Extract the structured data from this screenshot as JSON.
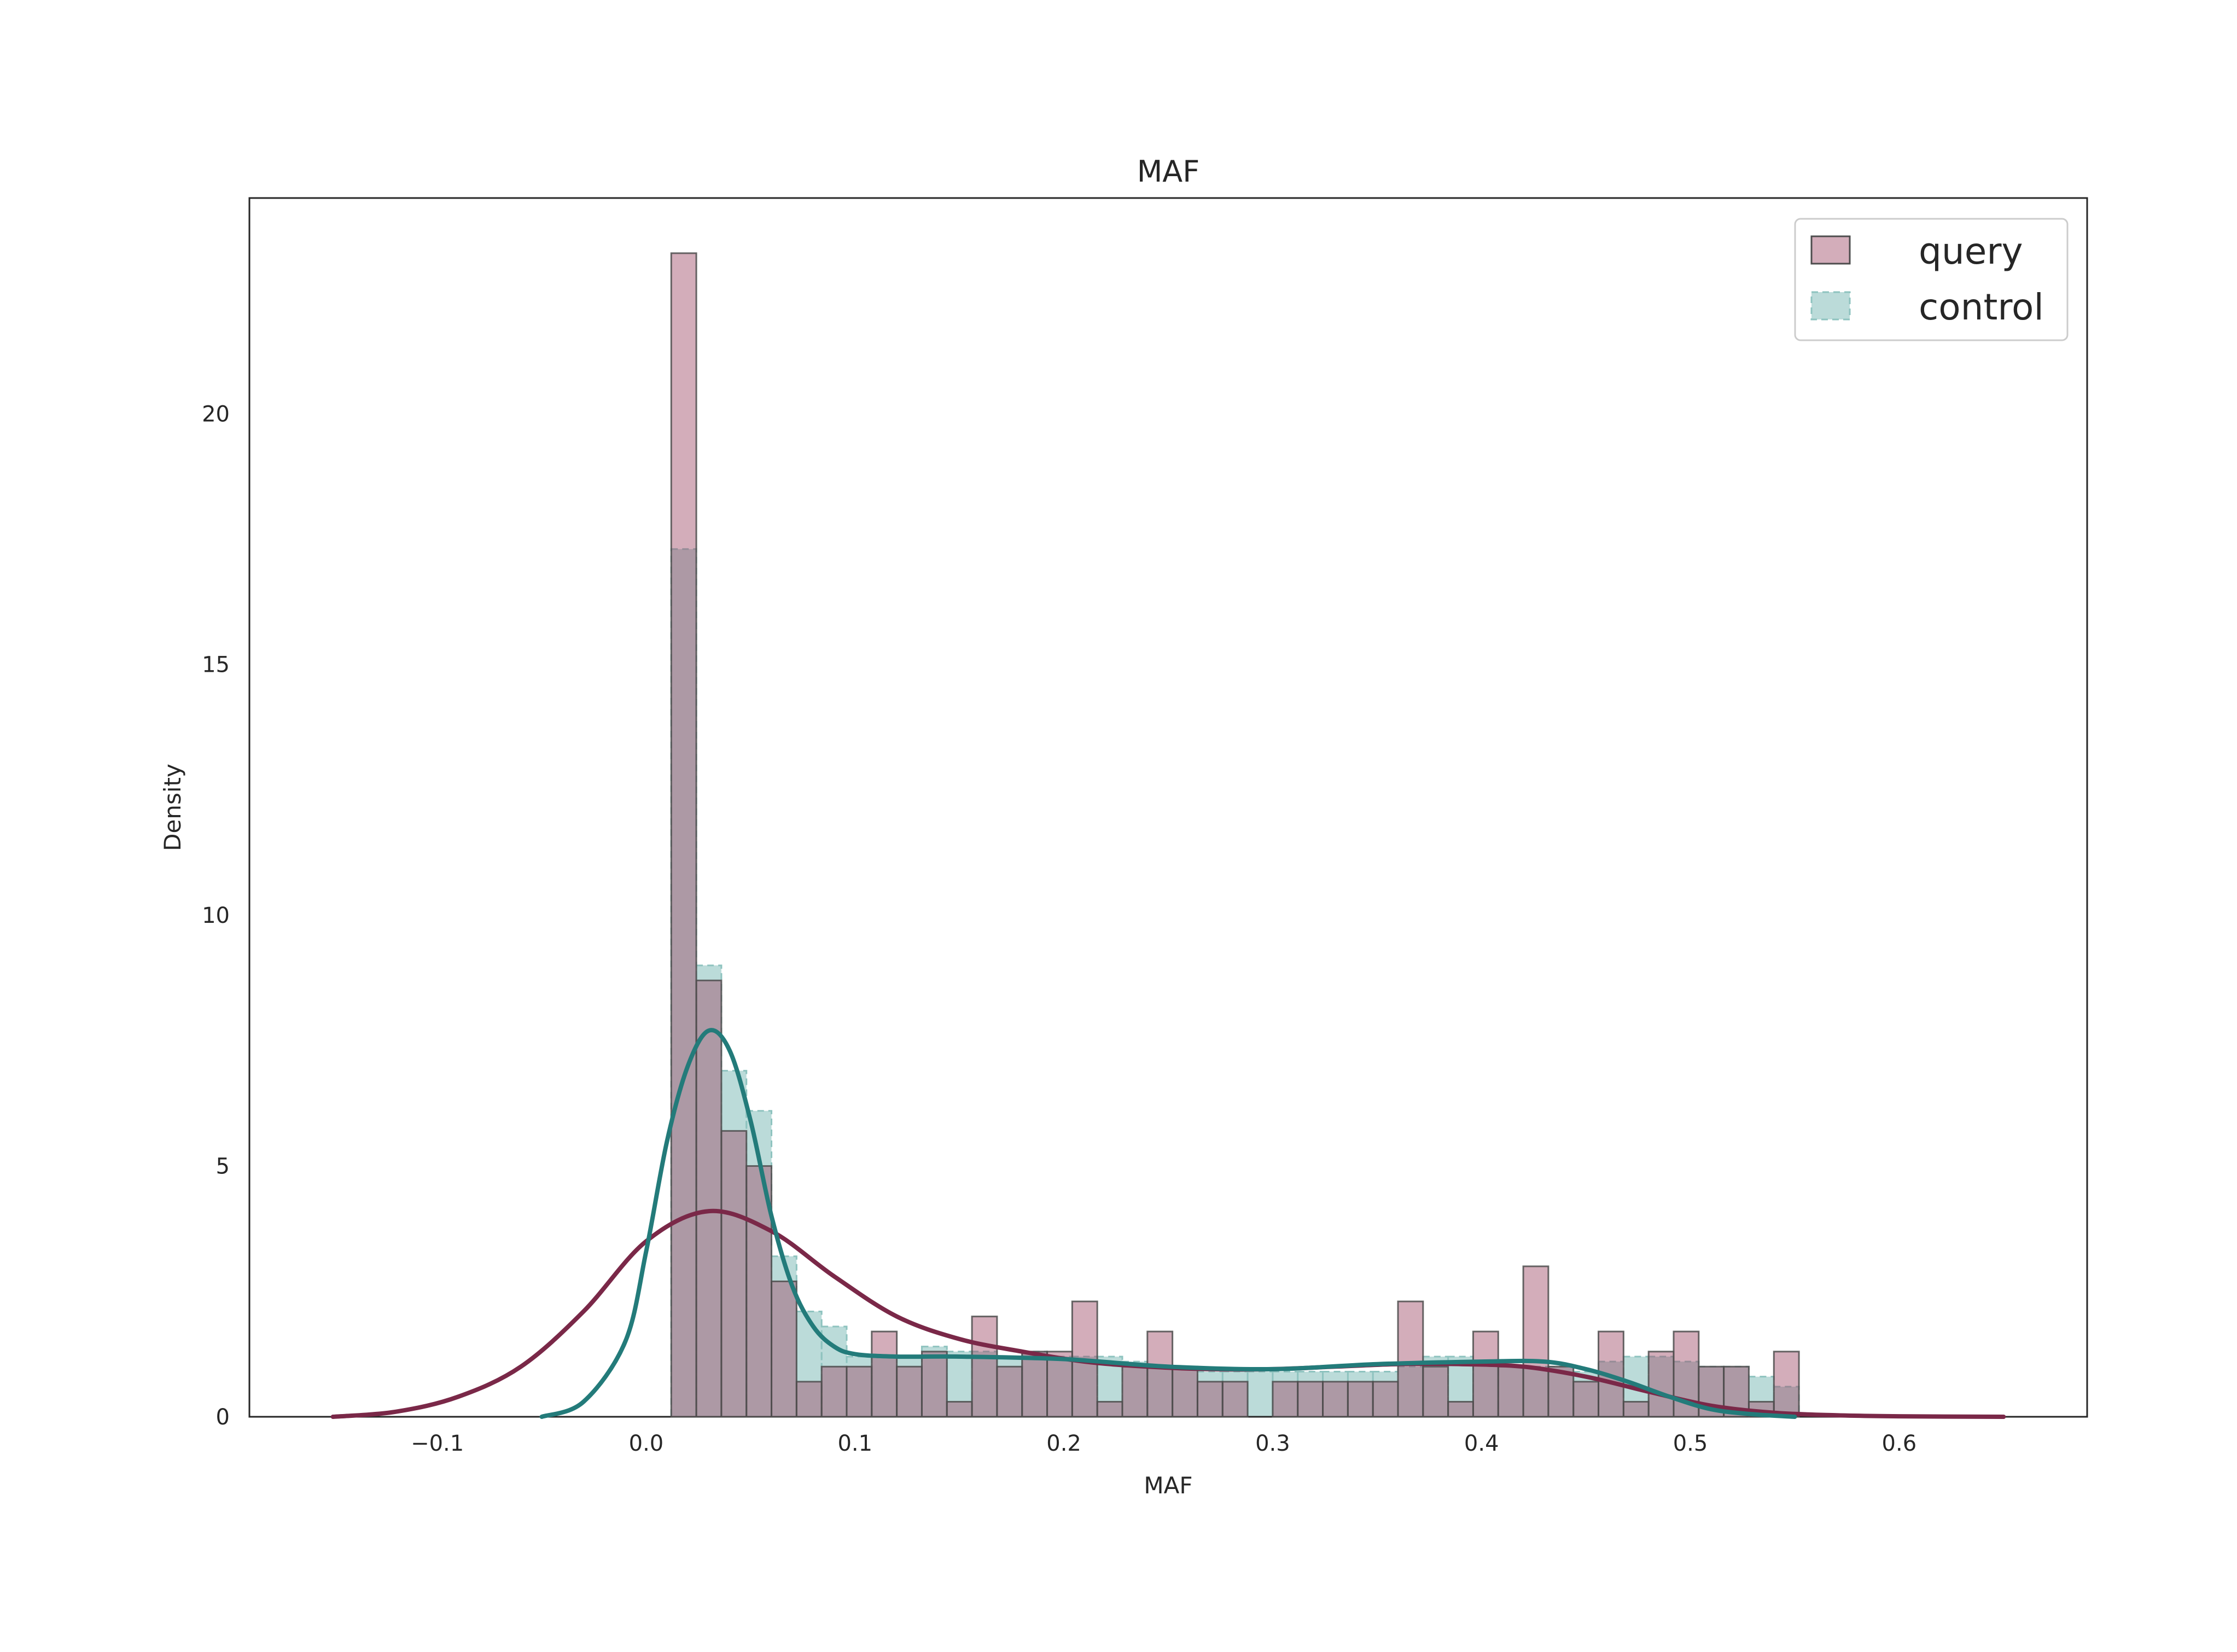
{
  "chart_data": {
    "type": "histogram",
    "title": "MAF",
    "xlabel": "MAF",
    "ylabel": "Density",
    "xlim": [
      -0.19,
      0.69
    ],
    "ylim": [
      0,
      24.3
    ],
    "xticks": [
      -0.1,
      0.0,
      0.1,
      0.2,
      0.3,
      0.4,
      0.5,
      0.6
    ],
    "xtick_labels": [
      "−0.1",
      "0.0",
      "0.1",
      "0.2",
      "0.3",
      "0.4",
      "0.5",
      "0.6"
    ],
    "yticks": [
      0,
      5,
      10,
      15,
      20
    ],
    "ytick_labels": [
      "0",
      "5",
      "10",
      "15",
      "20"
    ],
    "grid": false,
    "legend_position": "top-right",
    "bin_start": 0.012,
    "bin_width": 0.012,
    "series": [
      {
        "name": "query",
        "color": "#9e4966",
        "kde_color": "#7a2848",
        "densities": [
          23.2,
          8.7,
          5.7,
          5.0,
          2.7,
          0.7,
          1.0,
          1.0,
          1.7,
          1.0,
          1.3,
          0.3,
          2.0,
          1.0,
          1.3,
          1.3,
          2.3,
          0.3,
          1.0,
          1.7,
          1.0,
          0.7,
          0.7,
          0.0,
          0.7,
          0.7,
          0.7,
          0.7,
          0.7,
          2.3,
          1.0,
          0.3,
          1.7,
          1.0,
          3.0,
          1.0,
          0.7,
          1.7,
          0.3,
          1.3,
          1.7,
          1.0,
          1.0,
          0.3,
          1.3
        ],
        "kde": {
          "x": [
            -0.15,
            -0.12,
            -0.09,
            -0.06,
            -0.03,
            0.0,
            0.03,
            0.06,
            0.09,
            0.12,
            0.15,
            0.18,
            0.21,
            0.24,
            0.27,
            0.3,
            0.33,
            0.36,
            0.39,
            0.42,
            0.45,
            0.48,
            0.51,
            0.54,
            0.57,
            0.6,
            0.65
          ],
          "y": [
            0.0,
            0.1,
            0.4,
            1.0,
            2.1,
            3.5,
            4.1,
            3.7,
            2.8,
            2.0,
            1.55,
            1.3,
            1.1,
            1.0,
            0.95,
            0.95,
            1.0,
            1.05,
            1.05,
            1.0,
            0.8,
            0.5,
            0.22,
            0.08,
            0.03,
            0.01,
            0.0
          ]
        }
      },
      {
        "name": "control",
        "color": "#8ec3bf",
        "kde_color": "#237b7a",
        "densities": [
          17.3,
          9.0,
          6.9,
          6.1,
          3.2,
          2.1,
          1.8,
          1.2,
          1.2,
          1.2,
          1.4,
          1.3,
          1.3,
          1.2,
          1.3,
          1.2,
          1.2,
          1.2,
          1.1,
          1.0,
          1.0,
          0.9,
          0.9,
          0.9,
          0.9,
          0.9,
          0.9,
          0.9,
          0.9,
          1.0,
          1.2,
          1.2,
          1.1,
          1.0,
          1.0,
          1.0,
          0.9,
          1.1,
          1.2,
          1.2,
          1.1,
          1.0,
          1.0,
          0.8,
          0.6
        ],
        "kde": {
          "x": [
            -0.05,
            -0.03,
            -0.01,
            0.0,
            0.01,
            0.02,
            0.03,
            0.04,
            0.05,
            0.06,
            0.07,
            0.08,
            0.09,
            0.1,
            0.12,
            0.15,
            0.2,
            0.25,
            0.3,
            0.35,
            0.4,
            0.43,
            0.45,
            0.47,
            0.49,
            0.51,
            0.53,
            0.55
          ],
          "y": [
            0.0,
            0.3,
            1.5,
            3.3,
            5.5,
            7.0,
            7.7,
            7.3,
            5.9,
            4.0,
            2.6,
            1.8,
            1.4,
            1.25,
            1.2,
            1.2,
            1.15,
            1.0,
            0.95,
            1.05,
            1.1,
            1.1,
            0.95,
            0.7,
            0.4,
            0.15,
            0.05,
            0.0
          ]
        }
      }
    ]
  }
}
